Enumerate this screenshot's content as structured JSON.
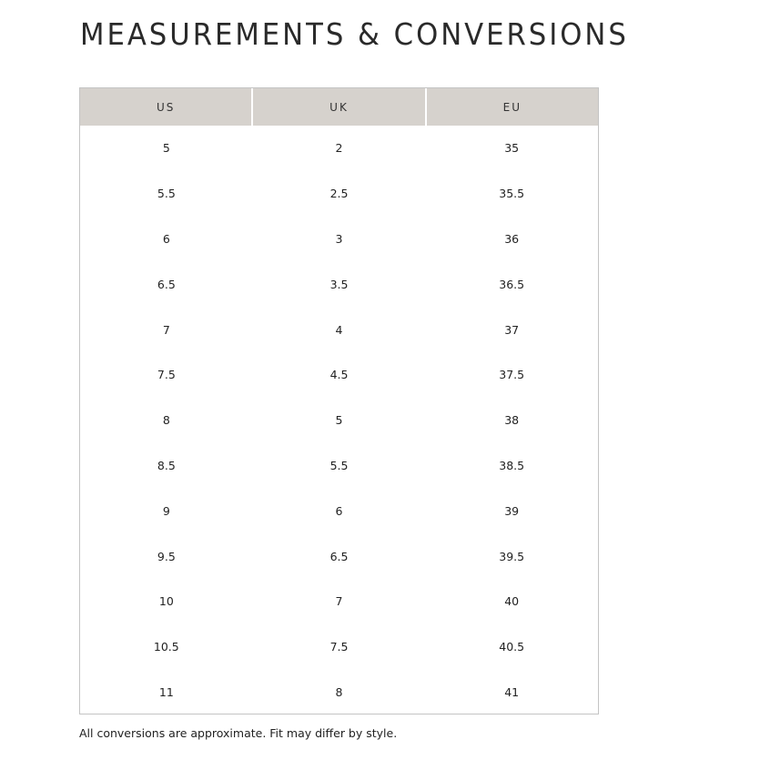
{
  "title": "MEASUREMENTS & CONVERSIONS",
  "table": {
    "headers": [
      "US",
      "UK",
      "EU"
    ],
    "rows": [
      [
        "5",
        "2",
        "35"
      ],
      [
        "5.5",
        "2.5",
        "35.5"
      ],
      [
        "6",
        "3",
        "36"
      ],
      [
        "6.5",
        "3.5",
        "36.5"
      ],
      [
        "7",
        "4",
        "37"
      ],
      [
        "7.5",
        "4.5",
        "37.5"
      ],
      [
        "8",
        "5",
        "38"
      ],
      [
        "8.5",
        "5.5",
        "38.5"
      ],
      [
        "9",
        "6",
        "39"
      ],
      [
        "9.5",
        "6.5",
        "39.5"
      ],
      [
        "10",
        "7",
        "40"
      ],
      [
        "10.5",
        "7.5",
        "40.5"
      ],
      [
        "11",
        "8",
        "41"
      ]
    ]
  },
  "note": "All conversions are approximate. Fit may differ by style.",
  "colors": {
    "header_bg": "#d6d2cd",
    "border": "#c4c4c4"
  }
}
